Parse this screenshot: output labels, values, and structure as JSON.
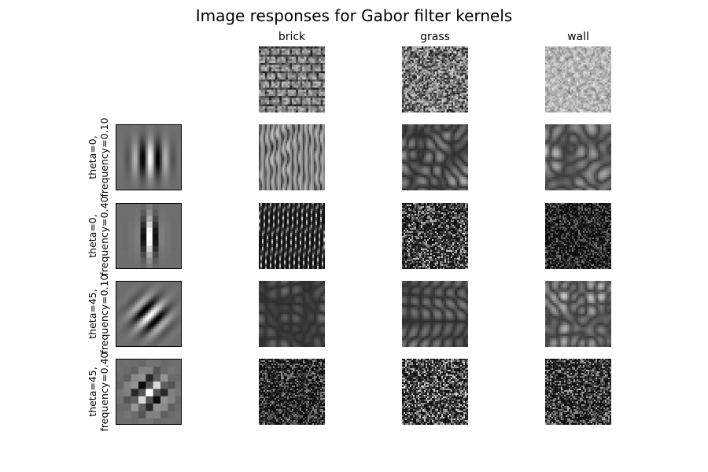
{
  "figure": {
    "title": "Image responses for Gabor filter kernels",
    "columns": [
      "brick",
      "grass",
      "wall"
    ],
    "rows": [
      {
        "label_line1": "theta=0,",
        "label_line2": "frequency=0.10"
      },
      {
        "label_line1": "theta=0,",
        "label_line2": "frequency=0.40"
      },
      {
        "label_line1": "theta=45,",
        "label_line2": "frequency=0.10"
      },
      {
        "label_line1": "theta=45,",
        "label_line2": "frequency=0.40"
      }
    ]
  },
  "colors": {
    "background": "#ffffff",
    "text": "#000000",
    "kernel_bg": "#6e6e6e"
  },
  "icons": {
    "kernel": "gabor-kernel-icon",
    "texture": "texture-thumbnail",
    "response": "filter-response-thumbnail"
  }
}
